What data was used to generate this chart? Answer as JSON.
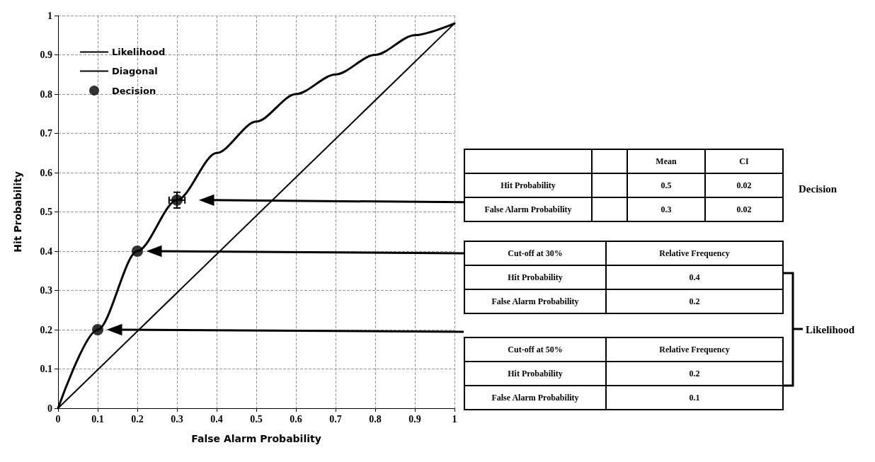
{
  "chart_data": {
    "type": "line",
    "xlabel": "False Alarm Probability",
    "ylabel": "Hit Probability",
    "xlim": [
      0,
      1
    ],
    "ylim": [
      0,
      1
    ],
    "xticks": [
      0,
      0.1,
      0.2,
      0.3,
      0.4,
      0.5,
      0.6,
      0.7,
      0.8,
      0.9,
      1
    ],
    "yticks": [
      0,
      0.1,
      0.2,
      0.3,
      0.4,
      0.5,
      0.6,
      0.7,
      0.8,
      0.9,
      1
    ],
    "grid": true,
    "legend": "top left",
    "series": [
      {
        "name": "Likelihood",
        "color": "#000000",
        "marker": "none",
        "x": [
          0,
          0.1,
          0.2,
          0.3,
          0.4,
          0.5,
          0.6,
          0.7,
          0.8,
          0.9,
          1
        ],
        "values": [
          0,
          0.2,
          0.4,
          0.53,
          0.65,
          0.73,
          0.8,
          0.85,
          0.9,
          0.95,
          0.98
        ]
      },
      {
        "name": "Diagonal",
        "type": "line",
        "color": "#000000",
        "marker": "none",
        "x": [
          0,
          1
        ],
        "values": [
          0,
          0.98
        ]
      },
      {
        "name": "Decision",
        "type": "scatter",
        "color": "#000000",
        "marker": "circle",
        "x": [
          0.1,
          0.2,
          0.3
        ],
        "values": [
          0.2,
          0.4,
          0.53
        ],
        "errors": [
          null,
          null,
          0.02
        ],
        "xerrors": [
          null,
          null,
          0.02
        ]
      }
    ],
    "annotations": [
      "Mean",
      "CI",
      "Hit Probability",
      "0.5",
      "0.02",
      "False Alarm Probability",
      "0.3",
      "0.02",
      "Decision",
      "Cut-off at 30%",
      "Relative Frequency",
      "Hit Probability",
      "0.4",
      "False Alarm Probability",
      "0.2",
      "Cut-off at 50%",
      "Relative Frequency",
      "Hit Probability",
      "0.2",
      "False Alarm Probability",
      "0.1",
      "Likelihood"
    ]
  }
}
